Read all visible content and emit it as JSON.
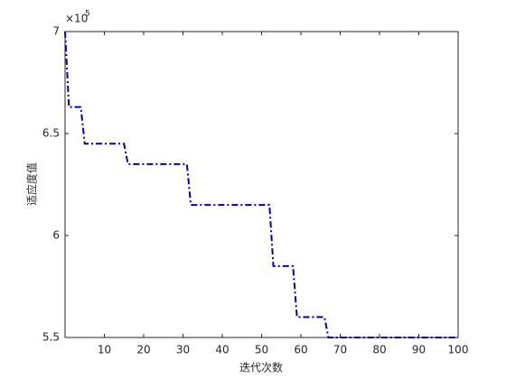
{
  "chart_data": {
    "type": "line",
    "x_label": "迭代次数",
    "y_label": "适应度值",
    "y_multiplier": {
      "base": "×10",
      "exponent": "5"
    },
    "x": [
      0,
      1,
      4,
      5,
      15,
      16,
      31,
      32,
      52,
      53,
      58,
      59,
      66,
      67,
      100
    ],
    "series": [
      {
        "color": "#0000b0",
        "line_style": "dash-dot",
        "values": [
          7,
          6.63,
          6.63,
          6.45,
          6.45,
          6.35,
          6.35,
          6.15,
          6.15,
          5.85,
          5.85,
          5.6,
          5.6,
          5.5,
          5.5
        ]
      }
    ],
    "xlim": [
      0,
      100
    ],
    "xticks": [
      10,
      20,
      30,
      40,
      50,
      60,
      70,
      80,
      90,
      100
    ],
    "ylim": [
      5.5,
      7
    ],
    "yticks": [
      5.5,
      6,
      6.5,
      7
    ],
    "grid": false
  }
}
